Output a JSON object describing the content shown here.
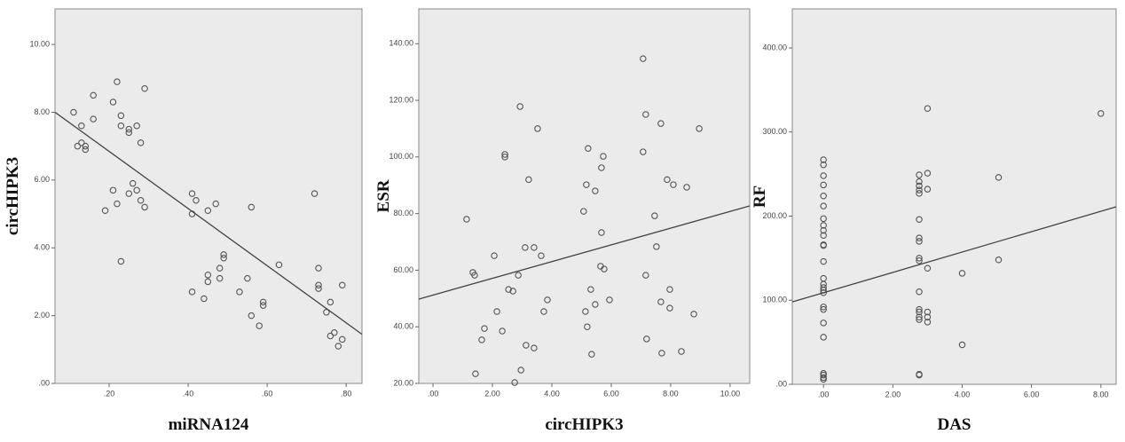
{
  "chart_data": [
    {
      "type": "scatter",
      "xlabel": "miRNA124",
      "ylabel": "circHIPK3",
      "xlim": [
        0.063,
        0.84
      ],
      "ylim": [
        0,
        11.05
      ],
      "xticks": [
        {
          "value": 0.2,
          "label": ".20"
        },
        {
          "value": 0.4,
          "label": ".40"
        },
        {
          "value": 0.6,
          "label": ".60"
        },
        {
          "value": 0.8,
          "label": ".80"
        }
      ],
      "yticks": [
        {
          "value": 0,
          "label": ".00"
        },
        {
          "value": 2,
          "label": "2.00"
        },
        {
          "value": 4,
          "label": "4.00"
        },
        {
          "value": 6,
          "label": "6.00"
        },
        {
          "value": 8,
          "label": "8.00"
        },
        {
          "value": 10,
          "label": "10.00"
        }
      ],
      "x": [
        0.11,
        0.13,
        0.12,
        0.13,
        0.14,
        0.14,
        0.16,
        0.16,
        0.19,
        0.21,
        0.22,
        0.21,
        0.22,
        0.23,
        0.23,
        0.23,
        0.25,
        0.25,
        0.25,
        0.26,
        0.27,
        0.27,
        0.28,
        0.28,
        0.29,
        0.29,
        0.41,
        0.41,
        0.42,
        0.41,
        0.44,
        0.45,
        0.45,
        0.45,
        0.47,
        0.48,
        0.48,
        0.49,
        0.49,
        0.53,
        0.55,
        0.56,
        0.56,
        0.58,
        0.59,
        0.59,
        0.63,
        0.72,
        0.73,
        0.73,
        0.73,
        0.75,
        0.76,
        0.76,
        0.77,
        0.78,
        0.79,
        0.79
      ],
      "values": [
        8.0,
        7.6,
        7.0,
        7.1,
        7.0,
        6.9,
        7.8,
        8.5,
        5.1,
        5.7,
        8.9,
        8.3,
        5.3,
        7.9,
        7.6,
        3.6,
        7.4,
        7.5,
        5.6,
        5.9,
        5.7,
        7.6,
        7.1,
        5.4,
        8.7,
        5.2,
        5.6,
        5.0,
        5.4,
        2.7,
        2.5,
        3.2,
        3.0,
        5.1,
        5.3,
        3.4,
        3.1,
        3.8,
        3.7,
        2.7,
        3.1,
        5.2,
        2.0,
        1.7,
        2.3,
        2.4,
        3.5,
        5.6,
        3.4,
        2.9,
        2.8,
        2.1,
        2.4,
        1.4,
        1.5,
        1.1,
        1.3,
        2.9
      ],
      "fit_line": {
        "x": [
          0.063,
          0.84
        ],
        "values": [
          8.0,
          1.45
        ]
      }
    },
    {
      "type": "scatter",
      "xlabel": "circHIPK3",
      "ylabel": "ESR",
      "xlim": [
        -0.48,
        10.66
      ],
      "ylim": [
        20,
        152.3
      ],
      "xticks": [
        {
          "value": 0,
          "label": ".00"
        },
        {
          "value": 2,
          "label": "2.00"
        },
        {
          "value": 4,
          "label": "4.00"
        },
        {
          "value": 6,
          "label": "6.00"
        },
        {
          "value": 8,
          "label": "8.00"
        },
        {
          "value": 10,
          "label": "10.00"
        }
      ],
      "yticks": [
        {
          "value": 20,
          "label": "20.00"
        },
        {
          "value": 40,
          "label": "40.00"
        },
        {
          "value": 60,
          "label": "60.00"
        },
        {
          "value": 80,
          "label": "80.00"
        },
        {
          "value": 100,
          "label": "100.00"
        },
        {
          "value": 120,
          "label": "120.00"
        },
        {
          "value": 140,
          "label": "140.00"
        }
      ],
      "x": [
        1.13,
        1.34,
        1.4,
        1.43,
        1.64,
        1.73,
        2.06,
        2.15,
        2.33,
        2.42,
        2.42,
        2.54,
        2.69,
        2.75,
        2.87,
        2.93,
        2.96,
        3.1,
        3.13,
        3.22,
        3.4,
        3.4,
        3.52,
        3.64,
        3.73,
        3.85,
        5.07,
        5.13,
        5.16,
        5.19,
        5.22,
        5.31,
        5.34,
        5.46,
        5.46,
        5.67,
        5.67,
        5.73,
        5.64,
        5.76,
        5.94,
        7.07,
        7.07,
        7.16,
        7.19,
        7.16,
        7.46,
        7.52,
        7.67,
        7.67,
        7.7,
        7.88,
        7.97,
        7.97,
        8.09,
        8.36,
        8.54,
        8.78,
        8.96
      ],
      "values": [
        78,
        59.2,
        58.2,
        23.4,
        35.4,
        39.4,
        65.1,
        45.4,
        38.5,
        100.9,
        100,
        53.2,
        52.6,
        20.3,
        58.2,
        117.8,
        24.7,
        68,
        33.5,
        92,
        68,
        32.5,
        110,
        65.1,
        45.4,
        49.5,
        80.8,
        45.4,
        90.2,
        40,
        103,
        53.2,
        30.3,
        88,
        47.9,
        73.3,
        96.2,
        100.2,
        61.4,
        60.4,
        49.5,
        101.8,
        134.7,
        58.2,
        35.7,
        115,
        79.2,
        68.3,
        111.8,
        48.8,
        30.7,
        92,
        46.6,
        53.2,
        90.2,
        31.3,
        89.3,
        44.5,
        110
      ],
      "fit_line": {
        "x": [
          -0.48,
          10.66
        ],
        "values": [
          49.8,
          82.7
        ]
      }
    },
    {
      "type": "scatter",
      "xlabel": "DAS",
      "ylabel": "RF",
      "xlim": [
        -0.9,
        8.44
      ],
      "ylim": [
        0,
        446.4
      ],
      "xticks": [
        {
          "value": 0,
          "label": ".00"
        },
        {
          "value": 2,
          "label": "2.00"
        },
        {
          "value": 4,
          "label": "4.00"
        },
        {
          "value": 6,
          "label": "6.00"
        },
        {
          "value": 8,
          "label": "8.00"
        }
      ],
      "yticks": [
        {
          "value": 0,
          "label": ".00"
        },
        {
          "value": 100,
          "label": "100.00"
        },
        {
          "value": 200,
          "label": "200.00"
        },
        {
          "value": 300,
          "label": "300.00"
        },
        {
          "value": 400,
          "label": "400.00"
        }
      ],
      "x": [
        0,
        0,
        0,
        0,
        0,
        0,
        0,
        0,
        0,
        0,
        0,
        0,
        0,
        0,
        0,
        0,
        0,
        0,
        0,
        0,
        0,
        0,
        0,
        0,
        0,
        0,
        2.76,
        2.76,
        2.76,
        2.76,
        2.76,
        2.76,
        2.76,
        2.76,
        2.76,
        2.76,
        2.76,
        2.76,
        2.76,
        2.76,
        2.76,
        2.76,
        2.76,
        3,
        3,
        3,
        3,
        3,
        3,
        3,
        4,
        4,
        5.05,
        5.05,
        8
      ],
      "values": [
        267,
        261,
        248,
        237,
        224,
        212,
        197,
        189,
        183,
        177,
        166,
        165,
        146,
        126,
        119,
        115,
        112,
        109,
        92,
        89,
        73,
        56,
        13,
        11,
        8,
        6,
        249,
        241,
        236,
        231,
        227,
        196,
        174,
        170,
        150,
        147,
        110,
        89,
        86,
        80,
        77,
        12,
        11,
        328,
        251,
        232,
        138,
        86,
        80,
        74,
        132,
        47,
        246,
        148,
        322
      ],
      "fit_line": {
        "x": [
          -0.9,
          8.44
        ],
        "values": [
          98,
          211
        ]
      }
    }
  ]
}
